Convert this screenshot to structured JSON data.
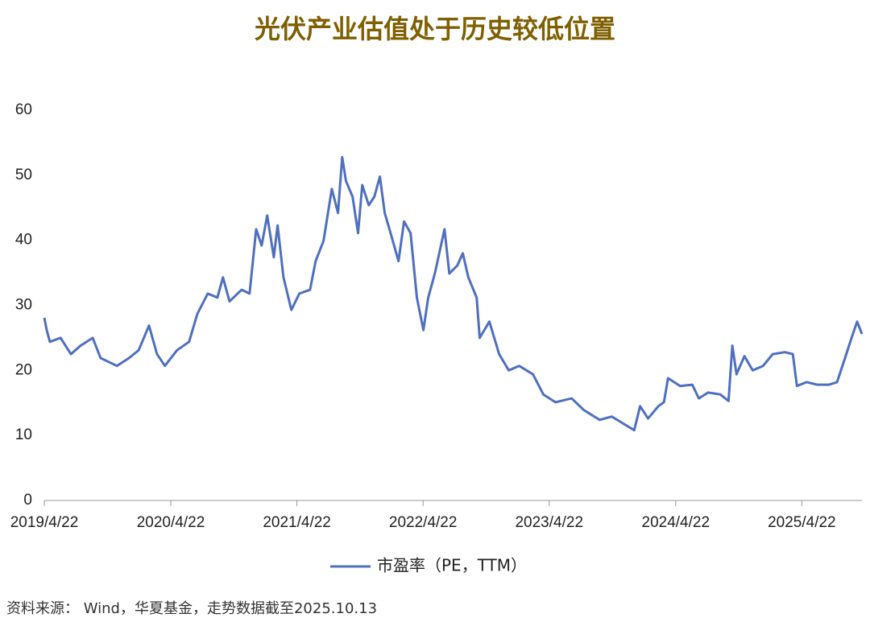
{
  "chart_data": {
    "type": "line",
    "title": "光伏产业估值处于历史较低位置",
    "source": "资料来源： Wind，华夏基金，走势数据截至2025.10.13",
    "x": [
      "2019/4/22",
      "2019/4/29",
      "2019/5/8",
      "2019/6/8",
      "2019/7/8",
      "2019/8/5",
      "2019/9/9",
      "2019/10/2",
      "2019/11/18",
      "2019/12/23",
      "2020/1/20",
      "2020/2/19",
      "2020/3/13",
      "2020/4/5",
      "2020/5/10",
      "2020/6/14",
      "2020/7/8",
      "2020/8/7",
      "2020/9/4",
      "2020/9/20",
      "2020/10/9",
      "2020/11/13",
      "2020/12/6",
      "2020/12/25",
      "2021/1/10",
      "2021/1/26",
      "2021/2/14",
      "2021/2/25",
      "2021/3/14",
      "2021/4/6",
      "2021/4/29",
      "2021/5/30",
      "2021/6/15",
      "2021/7/8",
      "2021/8/1",
      "2021/8/19",
      "2021/8/31",
      "2021/9/11",
      "2021/9/30",
      "2021/10/16",
      "2021/10/28",
      "2021/11/16",
      "2021/12/2",
      "2021/12/18",
      "2022/1/1",
      "2022/1/18",
      "2022/2/10",
      "2022/2/26",
      "2022/3/17",
      "2022/4/4",
      "2022/4/23",
      "2022/5/7",
      "2022/5/26",
      "2022/6/23",
      "2022/7/7",
      "2022/7/30",
      "2022/8/15",
      "2022/8/31",
      "2022/9/24",
      "2022/10/3",
      "2022/10/31",
      "2022/11/28",
      "2022/12/26",
      "2023/1/25",
      "2023/3/6",
      "2023/4/5",
      "2023/5/10",
      "2023/6/26",
      "2023/7/31",
      "2023/9/15",
      "2023/10/20",
      "2023/11/17",
      "2023/12/24",
      "2024/1/10",
      "2024/2/2",
      "2024/3/3",
      "2024/3/19",
      "2024/3/31",
      "2024/5/5",
      "2024/6/9",
      "2024/6/28",
      "2024/7/25",
      "2024/8/29",
      "2024/9/22",
      "2024/10/3",
      "2024/10/15",
      "2024/11/7",
      "2024/12/1",
      "2024/12/31",
      "2025/1/28",
      "2025/3/4",
      "2025/3/27",
      "2025/4/8",
      "2025/5/6",
      "2025/6/5",
      "2025/7/10",
      "2025/8/2",
      "2025/8/25",
      "2025/9/13",
      "2025/9/29",
      "2025/10/13"
    ],
    "series": [
      {
        "name": "市盈率（PE，TTM）",
        "color": "#4f6fbf",
        "values": [
          28.1,
          26.2,
          24.4,
          25,
          22.5,
          23.8,
          25,
          21.9,
          20.7,
          21.9,
          23.1,
          26.9,
          22.5,
          20.7,
          23.1,
          24.4,
          28.7,
          31.8,
          31.2,
          34.3,
          30.6,
          32.4,
          31.8,
          41.7,
          39.2,
          43.8,
          37.4,
          42.3,
          34.3,
          29.3,
          31.8,
          32.4,
          36.8,
          39.9,
          47.9,
          44.2,
          52.8,
          49.1,
          46.7,
          41.1,
          48.5,
          45.4,
          46.7,
          49.8,
          44.2,
          41.1,
          36.8,
          42.9,
          41.1,
          31.2,
          26.2,
          31.2,
          34.9,
          41.7,
          34.9,
          36.1,
          38.0,
          34.3,
          31.2,
          25,
          27.5,
          22.5,
          20,
          20.7,
          19.4,
          16.3,
          15.1,
          15.7,
          13.9,
          12.4,
          12.9,
          12,
          10.8,
          14.5,
          12.6,
          14.5,
          15.1,
          18.8,
          17.6,
          17.8,
          15.7,
          16.6,
          16.3,
          15.3,
          23.8,
          19.4,
          22.2,
          20,
          20.7,
          22.5,
          22.8,
          22.5,
          17.6,
          18.2,
          17.8,
          17.8,
          18.2,
          21.9,
          25,
          27.5,
          25.6
        ]
      }
    ],
    "xlim": [
      "2019/4/22",
      "2025/10/13"
    ],
    "xticks": [
      "2019/4/22",
      "2020/4/22",
      "2021/4/22",
      "2022/4/22",
      "2023/4/22",
      "2024/4/22",
      "2025/4/22"
    ],
    "ylim": [
      0,
      60
    ],
    "yticks": [
      0,
      10,
      20,
      30,
      40,
      50,
      60
    ],
    "grid": false
  }
}
